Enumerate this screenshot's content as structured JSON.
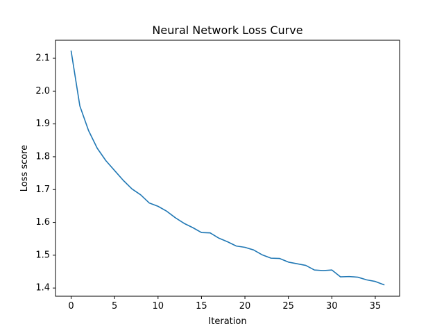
{
  "chart_data": {
    "type": "line",
    "title": "Neural Network Loss Curve",
    "xlabel": "Iteration",
    "ylabel": "Loss score",
    "xlim": [
      -1.8,
      37.8
    ],
    "ylim": [
      1.375,
      2.155
    ],
    "grid": false,
    "xticks": [
      0,
      5,
      10,
      15,
      20,
      25,
      30,
      35
    ],
    "yticks": [
      1.4,
      1.5,
      1.6,
      1.7,
      1.8,
      1.9,
      2.0,
      2.1
    ],
    "xtick_labels": [
      "0",
      "5",
      "10",
      "15",
      "20",
      "25",
      "30",
      "35"
    ],
    "ytick_labels": [
      "1.4",
      "1.5",
      "1.6",
      "1.7",
      "1.8",
      "1.9",
      "2.0",
      "2.1"
    ],
    "series": [
      {
        "color": "#1f77b4",
        "x": [
          0,
          1,
          2,
          3,
          4,
          5,
          6,
          7,
          8,
          9,
          10,
          11,
          12,
          13,
          14,
          15,
          16,
          17,
          18,
          19,
          20,
          21,
          22,
          23,
          24,
          25,
          26,
          27,
          28,
          29,
          30,
          31,
          32,
          33,
          34,
          35,
          36
        ],
        "y": [
          2.122,
          1.955,
          1.88,
          1.826,
          1.788,
          1.758,
          1.728,
          1.702,
          1.684,
          1.659,
          1.649,
          1.634,
          1.614,
          1.597,
          1.584,
          1.569,
          1.568,
          1.552,
          1.541,
          1.528,
          1.524,
          1.516,
          1.501,
          1.491,
          1.49,
          1.479,
          1.474,
          1.469,
          1.455,
          1.453,
          1.455,
          1.434,
          1.435,
          1.433,
          1.425,
          1.42,
          1.41
        ]
      }
    ]
  }
}
